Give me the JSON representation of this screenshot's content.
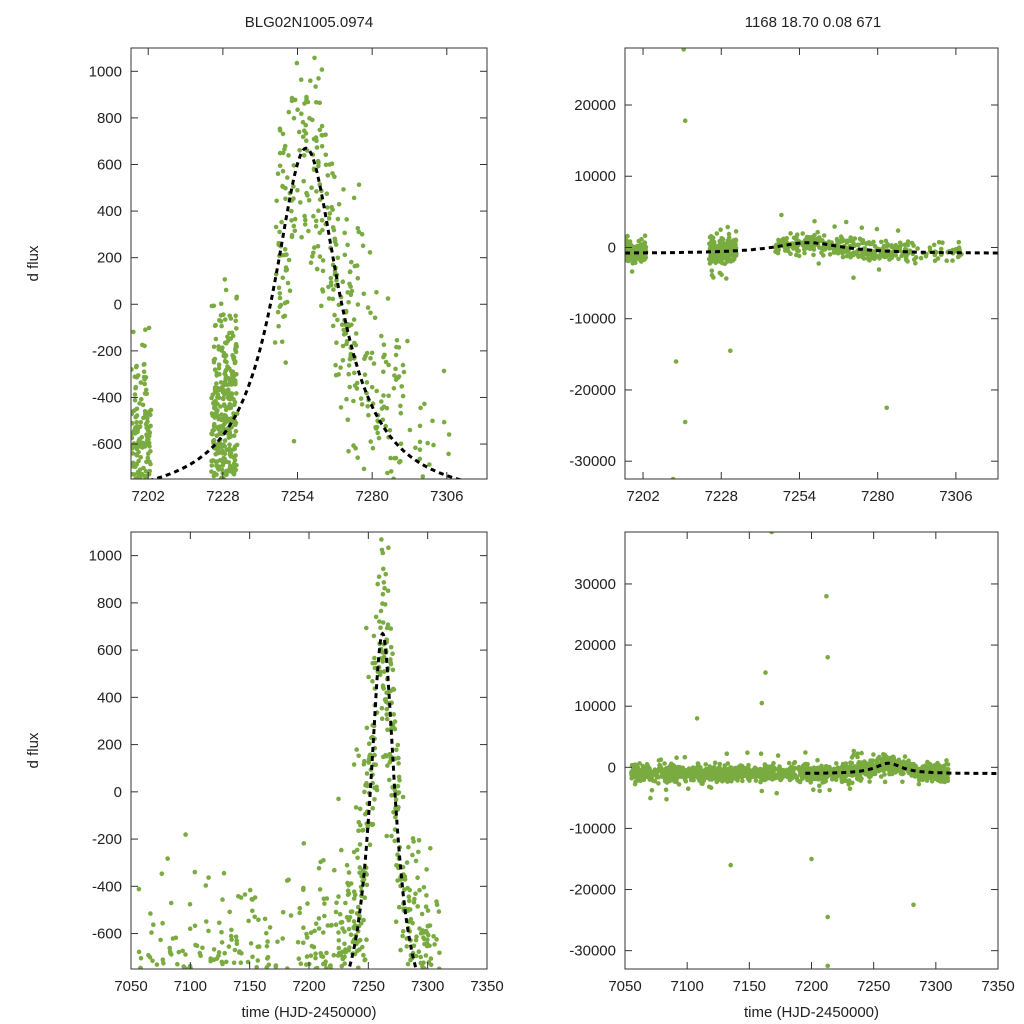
{
  "figure": {
    "title_left": "BLG02N1005.0974",
    "title_right": "1168  18.70  0.08  671"
  },
  "colors": {
    "points": "#7aab40",
    "model": "#000000",
    "axes": "#333333"
  },
  "chart_data": [
    {
      "id": "top-left",
      "type": "scatter",
      "title": "BLG02N1005.0974",
      "xlabel": "",
      "ylabel": "d flux",
      "xlim": [
        7196,
        7320
      ],
      "ylim": [
        -750,
        1100
      ],
      "xticks": [
        7202,
        7228,
        7254,
        7280,
        7306
      ],
      "yticks": [
        -600,
        -400,
        -200,
        0,
        200,
        400,
        600,
        800,
        1000
      ],
      "grid": false,
      "model": {
        "t0": 7257,
        "peak": 670,
        "base": -850,
        "tau": 14
      },
      "observations": {
        "count": 1100,
        "seed": 11
      }
    },
    {
      "id": "top-right",
      "type": "scatter",
      "title": "1168  18.70  0.08  671",
      "xlabel": "",
      "ylabel": "",
      "xlim": [
        7196,
        7320
      ],
      "ylim": [
        -32500,
        28000
      ],
      "xticks": [
        7202,
        7228,
        7254,
        7280,
        7306
      ],
      "yticks": [
        -30000,
        -20000,
        -10000,
        0,
        10000,
        20000
      ],
      "grid": false,
      "model": {
        "t0": 7257,
        "peak": 670,
        "base": -850,
        "tau": 14
      },
      "observations": {
        "count": 900,
        "seed": 23
      },
      "outliers": [
        [
          7215.5,
          27800
        ],
        [
          7216,
          17800
        ],
        [
          7216,
          -24500
        ],
        [
          7213,
          -16000
        ],
        [
          7212,
          -32500
        ],
        [
          7231,
          -14500
        ],
        [
          7283,
          -22500
        ]
      ]
    },
    {
      "id": "bottom-left",
      "type": "scatter",
      "title": "",
      "xlabel": "time (HJD-2450000)",
      "ylabel": "d flux",
      "xlim": [
        7050,
        7350
      ],
      "ylim": [
        -750,
        1100
      ],
      "xticks": [
        7050,
        7100,
        7150,
        7200,
        7250,
        7300,
        7350
      ],
      "yticks": [
        -600,
        -400,
        -200,
        0,
        200,
        400,
        600,
        800,
        1000
      ],
      "grid": false,
      "model": {
        "t0": 7262,
        "peak": 670,
        "base": -1050,
        "tau": 13
      },
      "observations": {
        "count": 1500,
        "seed": 37
      }
    },
    {
      "id": "bottom-right",
      "type": "scatter",
      "title": "",
      "xlabel": "time (HJD-2450000)",
      "ylabel": "",
      "xlim": [
        7050,
        7350
      ],
      "ylim": [
        -33000,
        38500
      ],
      "xticks": [
        7050,
        7100,
        7150,
        7200,
        7250,
        7300,
        7350
      ],
      "yticks": [
        -30000,
        -20000,
        -10000,
        0,
        10000,
        20000,
        30000
      ],
      "grid": false,
      "model": {
        "t0": 7262,
        "peak": 670,
        "base": -1050,
        "tau": 13,
        "t_start": 7195
      },
      "observations": {
        "count": 1400,
        "seed": 53
      },
      "outliers": [
        [
          7212,
          28000
        ],
        [
          7213,
          18000
        ],
        [
          7213,
          -24500
        ],
        [
          7213,
          -32500
        ],
        [
          7168,
          38500
        ],
        [
          7160,
          10500
        ],
        [
          7163,
          15500
        ],
        [
          7108,
          8000
        ],
        [
          7282,
          -22500
        ],
        [
          7135,
          -16000
        ],
        [
          7200,
          -15000
        ]
      ]
    }
  ]
}
